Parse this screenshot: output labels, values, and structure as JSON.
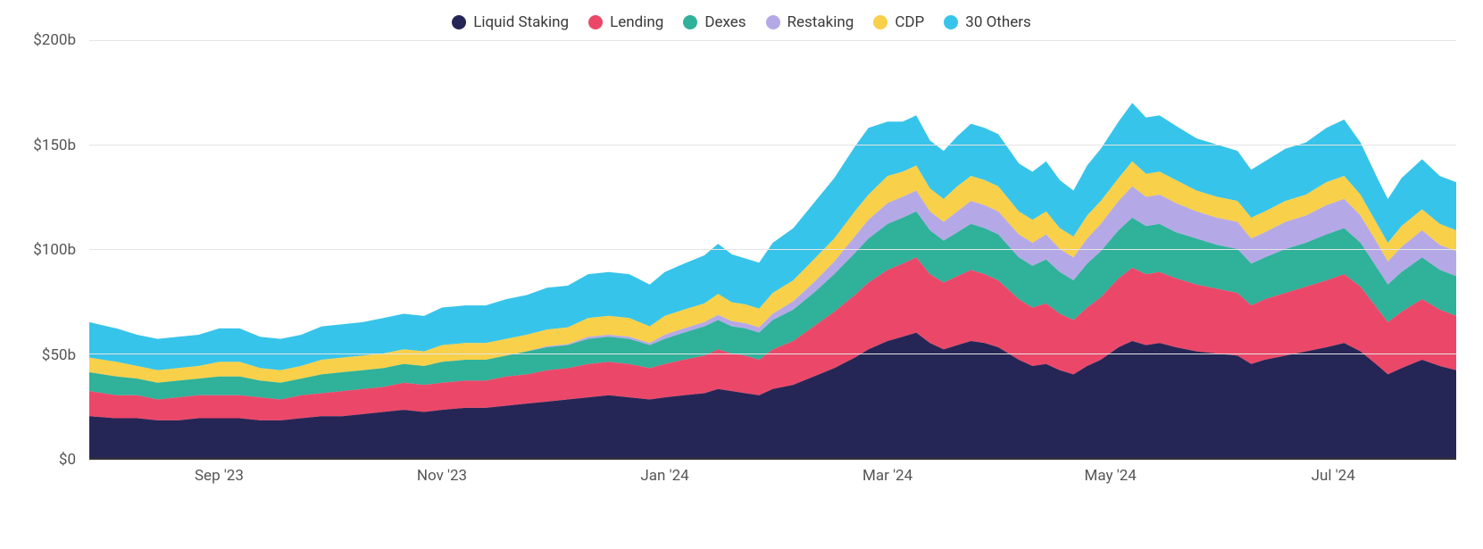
{
  "chart": {
    "type": "area-stacked",
    "background_color": "#ffffff",
    "grid_color": "#e5e5e5",
    "axis_text_color": "#555555",
    "legend_text_color": "#3a3a3a",
    "font_size_legend": 17,
    "font_size_axis": 17,
    "y": {
      "min": 0,
      "max": 200,
      "tick_step": 50,
      "ticks": [
        "$0",
        "$50b",
        "$100b",
        "$150b",
        "$200b"
      ],
      "label": ""
    },
    "x": {
      "ticks": [
        "Sep '23",
        "Nov '23",
        "Jan '24",
        "Mar '24",
        "May '24",
        "Jul '24"
      ],
      "tick_positions_pct": [
        9.5,
        25.8,
        42.1,
        58.4,
        74.7,
        91.0
      ]
    },
    "series_order": [
      "Liquid Staking",
      "Lending",
      "Dexes",
      "Restaking",
      "CDP",
      "30 Others"
    ],
    "colors": {
      "Liquid Staking": "#262656",
      "Lending": "#eb4869",
      "Dexes": "#2fb19a",
      "Restaking": "#b4a9e6",
      "CDP": "#f8d04a",
      "30 Others": "#37c4ea"
    },
    "data": [
      {
        "x": 0.0,
        "Liquid Staking": 20,
        "Lending": 12,
        "Dexes": 9,
        "Restaking": 0.0,
        "CDP": 7,
        "30 Others": 17
      },
      {
        "x": 0.02,
        "Liquid Staking": 19,
        "Lending": 11,
        "Dexes": 9,
        "Restaking": 0.0,
        "CDP": 7,
        "30 Others": 16
      },
      {
        "x": 0.035,
        "Liquid Staking": 19,
        "Lending": 11,
        "Dexes": 8,
        "Restaking": 0.0,
        "CDP": 6,
        "30 Others": 15
      },
      {
        "x": 0.05,
        "Liquid Staking": 18,
        "Lending": 10,
        "Dexes": 8,
        "Restaking": 0.0,
        "CDP": 6,
        "30 Others": 15
      },
      {
        "x": 0.065,
        "Liquid Staking": 18,
        "Lending": 11,
        "Dexes": 8,
        "Restaking": 0.0,
        "CDP": 6,
        "30 Others": 15
      },
      {
        "x": 0.08,
        "Liquid Staking": 19,
        "Lending": 11,
        "Dexes": 8,
        "Restaking": 0.0,
        "CDP": 6,
        "30 Others": 15
      },
      {
        "x": 0.095,
        "Liquid Staking": 19,
        "Lending": 11,
        "Dexes": 9,
        "Restaking": 0.0,
        "CDP": 7,
        "30 Others": 16
      },
      {
        "x": 0.11,
        "Liquid Staking": 19,
        "Lending": 11,
        "Dexes": 9,
        "Restaking": 0.0,
        "CDP": 7,
        "30 Others": 16
      },
      {
        "x": 0.125,
        "Liquid Staking": 18,
        "Lending": 11,
        "Dexes": 8,
        "Restaking": 0.0,
        "CDP": 6,
        "30 Others": 15
      },
      {
        "x": 0.14,
        "Liquid Staking": 18,
        "Lending": 10,
        "Dexes": 8,
        "Restaking": 0.0,
        "CDP": 6,
        "30 Others": 15
      },
      {
        "x": 0.155,
        "Liquid Staking": 19,
        "Lending": 11,
        "Dexes": 8,
        "Restaking": 0.0,
        "CDP": 6,
        "30 Others": 15
      },
      {
        "x": 0.17,
        "Liquid Staking": 20,
        "Lending": 11,
        "Dexes": 9,
        "Restaking": 0.0,
        "CDP": 7,
        "30 Others": 16
      },
      {
        "x": 0.185,
        "Liquid Staking": 20,
        "Lending": 12,
        "Dexes": 9,
        "Restaking": 0.0,
        "CDP": 7,
        "30 Others": 16
      },
      {
        "x": 0.2,
        "Liquid Staking": 21,
        "Lending": 12,
        "Dexes": 9,
        "Restaking": 0.0,
        "CDP": 7,
        "30 Others": 16
      },
      {
        "x": 0.215,
        "Liquid Staking": 22,
        "Lending": 12,
        "Dexes": 9,
        "Restaking": 0.0,
        "CDP": 7,
        "30 Others": 17
      },
      {
        "x": 0.23,
        "Liquid Staking": 23,
        "Lending": 13,
        "Dexes": 9,
        "Restaking": 0.0,
        "CDP": 7,
        "30 Others": 17
      },
      {
        "x": 0.245,
        "Liquid Staking": 22,
        "Lending": 13,
        "Dexes": 9,
        "Restaking": 0.0,
        "CDP": 7,
        "30 Others": 17
      },
      {
        "x": 0.258,
        "Liquid Staking": 23,
        "Lending": 13,
        "Dexes": 10,
        "Restaking": 0.0,
        "CDP": 8,
        "30 Others": 18
      },
      {
        "x": 0.275,
        "Liquid Staking": 24,
        "Lending": 13,
        "Dexes": 10,
        "Restaking": 0.0,
        "CDP": 8,
        "30 Others": 18
      },
      {
        "x": 0.29,
        "Liquid Staking": 24,
        "Lending": 13,
        "Dexes": 10,
        "Restaking": 0.0,
        "CDP": 8,
        "30 Others": 18
      },
      {
        "x": 0.305,
        "Liquid Staking": 25,
        "Lending": 14,
        "Dexes": 10,
        "Restaking": 0.0,
        "CDP": 8,
        "30 Others": 19
      },
      {
        "x": 0.32,
        "Liquid Staking": 26,
        "Lending": 14,
        "Dexes": 11,
        "Restaking": 0.0,
        "CDP": 8,
        "30 Others": 19
      },
      {
        "x": 0.335,
        "Liquid Staking": 27,
        "Lending": 15,
        "Dexes": 11,
        "Restaking": 0.5,
        "CDP": 8,
        "30 Others": 20
      },
      {
        "x": 0.35,
        "Liquid Staking": 28,
        "Lending": 15,
        "Dexes": 11,
        "Restaking": 0.5,
        "CDP": 8,
        "30 Others": 20
      },
      {
        "x": 0.365,
        "Liquid Staking": 29,
        "Lending": 16,
        "Dexes": 12,
        "Restaking": 1.0,
        "CDP": 9,
        "30 Others": 21
      },
      {
        "x": 0.38,
        "Liquid Staking": 30,
        "Lending": 16,
        "Dexes": 12,
        "Restaking": 1.0,
        "CDP": 9,
        "30 Others": 21
      },
      {
        "x": 0.395,
        "Liquid Staking": 29,
        "Lending": 16,
        "Dexes": 12,
        "Restaking": 1.0,
        "CDP": 9,
        "30 Others": 21
      },
      {
        "x": 0.41,
        "Liquid Staking": 28,
        "Lending": 15,
        "Dexes": 11,
        "Restaking": 1.0,
        "CDP": 8,
        "30 Others": 20
      },
      {
        "x": 0.421,
        "Liquid Staking": 29,
        "Lending": 16,
        "Dexes": 12,
        "Restaking": 2.0,
        "CDP": 9,
        "30 Others": 21
      },
      {
        "x": 0.435,
        "Liquid Staking": 30,
        "Lending": 17,
        "Dexes": 13,
        "Restaking": 2.0,
        "CDP": 9,
        "30 Others": 22
      },
      {
        "x": 0.45,
        "Liquid Staking": 31,
        "Lending": 18,
        "Dexes": 14,
        "Restaking": 2.0,
        "CDP": 9,
        "30 Others": 23
      },
      {
        "x": 0.46,
        "Liquid Staking": 33,
        "Lending": 19,
        "Dexes": 14,
        "Restaking": 2.5,
        "CDP": 10,
        "30 Others": 24
      },
      {
        "x": 0.47,
        "Liquid Staking": 32,
        "Lending": 18,
        "Dexes": 13,
        "Restaking": 2.5,
        "CDP": 9,
        "30 Others": 23
      },
      {
        "x": 0.48,
        "Liquid Staking": 31,
        "Lending": 18,
        "Dexes": 13,
        "Restaking": 2.5,
        "CDP": 9,
        "30 Others": 22
      },
      {
        "x": 0.49,
        "Liquid Staking": 30,
        "Lending": 17,
        "Dexes": 13,
        "Restaking": 2.5,
        "CDP": 9,
        "30 Others": 22
      },
      {
        "x": 0.5,
        "Liquid Staking": 33,
        "Lending": 19,
        "Dexes": 14,
        "Restaking": 3.0,
        "CDP": 10,
        "30 Others": 24
      },
      {
        "x": 0.515,
        "Liquid Staking": 35,
        "Lending": 21,
        "Dexes": 15,
        "Restaking": 4.0,
        "CDP": 10,
        "30 Others": 25
      },
      {
        "x": 0.53,
        "Liquid Staking": 39,
        "Lending": 24,
        "Dexes": 16,
        "Restaking": 5.0,
        "CDP": 11,
        "30 Others": 27
      },
      {
        "x": 0.545,
        "Liquid Staking": 43,
        "Lending": 27,
        "Dexes": 18,
        "Restaking": 6.0,
        "CDP": 11,
        "30 Others": 29
      },
      {
        "x": 0.56,
        "Liquid Staking": 48,
        "Lending": 30,
        "Dexes": 20,
        "Restaking": 8.0,
        "CDP": 12,
        "30 Others": 31
      },
      {
        "x": 0.57,
        "Liquid Staking": 52,
        "Lending": 32,
        "Dexes": 21,
        "Restaking": 9.0,
        "CDP": 12,
        "30 Others": 32
      },
      {
        "x": 0.584,
        "Liquid Staking": 56,
        "Lending": 34,
        "Dexes": 22,
        "Restaking": 10.0,
        "CDP": 13,
        "30 Others": 26
      },
      {
        "x": 0.595,
        "Liquid Staking": 58,
        "Lending": 35,
        "Dexes": 22,
        "Restaking": 10.0,
        "CDP": 12,
        "30 Others": 24
      },
      {
        "x": 0.605,
        "Liquid Staking": 60,
        "Lending": 36,
        "Dexes": 22,
        "Restaking": 10.0,
        "CDP": 12,
        "30 Others": 24
      },
      {
        "x": 0.615,
        "Liquid Staking": 55,
        "Lending": 33,
        "Dexes": 21,
        "Restaking": 9.0,
        "CDP": 11,
        "30 Others": 23
      },
      {
        "x": 0.625,
        "Liquid Staking": 52,
        "Lending": 32,
        "Dexes": 20,
        "Restaking": 9.0,
        "CDP": 11,
        "30 Others": 23
      },
      {
        "x": 0.635,
        "Liquid Staking": 54,
        "Lending": 33,
        "Dexes": 21,
        "Restaking": 10.0,
        "CDP": 12,
        "30 Others": 24
      },
      {
        "x": 0.645,
        "Liquid Staking": 56,
        "Lending": 34,
        "Dexes": 22,
        "Restaking": 11.0,
        "CDP": 12,
        "30 Others": 25
      },
      {
        "x": 0.655,
        "Liquid Staking": 55,
        "Lending": 33,
        "Dexes": 22,
        "Restaking": 11.0,
        "CDP": 12,
        "30 Others": 25
      },
      {
        "x": 0.665,
        "Liquid Staking": 53,
        "Lending": 32,
        "Dexes": 22,
        "Restaking": 11.0,
        "CDP": 12,
        "30 Others": 25
      },
      {
        "x": 0.68,
        "Liquid Staking": 47,
        "Lending": 29,
        "Dexes": 20,
        "Restaking": 11.0,
        "CDP": 11,
        "30 Others": 23
      },
      {
        "x": 0.69,
        "Liquid Staking": 44,
        "Lending": 28,
        "Dexes": 20,
        "Restaking": 11.0,
        "CDP": 11,
        "30 Others": 23
      },
      {
        "x": 0.7,
        "Liquid Staking": 45,
        "Lending": 29,
        "Dexes": 21,
        "Restaking": 12.0,
        "CDP": 11,
        "30 Others": 24
      },
      {
        "x": 0.71,
        "Liquid Staking": 42,
        "Lending": 27,
        "Dexes": 20,
        "Restaking": 11.0,
        "CDP": 10,
        "30 Others": 23
      },
      {
        "x": 0.72,
        "Liquid Staking": 40,
        "Lending": 26,
        "Dexes": 19,
        "Restaking": 11.0,
        "CDP": 10,
        "30 Others": 22
      },
      {
        "x": 0.73,
        "Liquid Staking": 44,
        "Lending": 28,
        "Dexes": 21,
        "Restaking": 12.0,
        "CDP": 11,
        "30 Others": 24
      },
      {
        "x": 0.74,
        "Liquid Staking": 47,
        "Lending": 30,
        "Dexes": 22,
        "Restaking": 13.0,
        "CDP": 11,
        "30 Others": 25
      },
      {
        "x": 0.753,
        "Liquid Staking": 53,
        "Lending": 33,
        "Dexes": 23,
        "Restaking": 14.0,
        "CDP": 11,
        "30 Others": 27
      },
      {
        "x": 0.763,
        "Liquid Staking": 56,
        "Lending": 35,
        "Dexes": 24,
        "Restaking": 15.0,
        "CDP": 12,
        "30 Others": 28
      },
      {
        "x": 0.773,
        "Liquid Staking": 54,
        "Lending": 34,
        "Dexes": 23,
        "Restaking": 14.0,
        "CDP": 11,
        "30 Others": 27
      },
      {
        "x": 0.783,
        "Liquid Staking": 55,
        "Lending": 34,
        "Dexes": 23,
        "Restaking": 14.0,
        "CDP": 11,
        "30 Others": 27
      },
      {
        "x": 0.795,
        "Liquid Staking": 53,
        "Lending": 33,
        "Dexes": 22,
        "Restaking": 14.0,
        "CDP": 11,
        "30 Others": 26
      },
      {
        "x": 0.81,
        "Liquid Staking": 51,
        "Lending": 32,
        "Dexes": 22,
        "Restaking": 13.0,
        "CDP": 10,
        "30 Others": 25
      },
      {
        "x": 0.825,
        "Liquid Staking": 50,
        "Lending": 31,
        "Dexes": 21,
        "Restaking": 13.0,
        "CDP": 10,
        "30 Others": 25
      },
      {
        "x": 0.84,
        "Liquid Staking": 49,
        "Lending": 30,
        "Dexes": 21,
        "Restaking": 13.0,
        "CDP": 10,
        "30 Others": 24
      },
      {
        "x": 0.85,
        "Liquid Staking": 45,
        "Lending": 28,
        "Dexes": 20,
        "Restaking": 12.0,
        "CDP": 10,
        "30 Others": 23
      },
      {
        "x": 0.86,
        "Liquid Staking": 47,
        "Lending": 29,
        "Dexes": 20,
        "Restaking": 12.0,
        "CDP": 10,
        "30 Others": 24
      },
      {
        "x": 0.875,
        "Liquid Staking": 49,
        "Lending": 30,
        "Dexes": 21,
        "Restaking": 13.0,
        "CDP": 10,
        "30 Others": 25
      },
      {
        "x": 0.89,
        "Liquid Staking": 51,
        "Lending": 31,
        "Dexes": 21,
        "Restaking": 13.0,
        "CDP": 10,
        "30 Others": 25
      },
      {
        "x": 0.905,
        "Liquid Staking": 53,
        "Lending": 32,
        "Dexes": 22,
        "Restaking": 14.0,
        "CDP": 11,
        "30 Others": 26
      },
      {
        "x": 0.918,
        "Liquid Staking": 55,
        "Lending": 33,
        "Dexes": 22,
        "Restaking": 14.0,
        "CDP": 11,
        "30 Others": 27
      },
      {
        "x": 0.93,
        "Liquid Staking": 51,
        "Lending": 31,
        "Dexes": 21,
        "Restaking": 13.0,
        "CDP": 10,
        "30 Others": 25
      },
      {
        "x": 0.943,
        "Liquid Staking": 44,
        "Lending": 27,
        "Dexes": 19,
        "Restaking": 12.0,
        "CDP": 9,
        "30 Others": 22
      },
      {
        "x": 0.95,
        "Liquid Staking": 40,
        "Lending": 25,
        "Dexes": 18,
        "Restaking": 11.0,
        "CDP": 9,
        "30 Others": 21
      },
      {
        "x": 0.96,
        "Liquid Staking": 43,
        "Lending": 27,
        "Dexes": 19,
        "Restaking": 12.0,
        "CDP": 10,
        "30 Others": 23
      },
      {
        "x": 0.975,
        "Liquid Staking": 47,
        "Lending": 29,
        "Dexes": 20,
        "Restaking": 13.0,
        "CDP": 10,
        "30 Others": 24
      },
      {
        "x": 0.988,
        "Liquid Staking": 44,
        "Lending": 27,
        "Dexes": 19,
        "Restaking": 12.0,
        "CDP": 10,
        "30 Others": 23
      },
      {
        "x": 1.0,
        "Liquid Staking": 42,
        "Lending": 26,
        "Dexes": 19,
        "Restaking": 12.0,
        "CDP": 10,
        "30 Others": 23
      }
    ]
  },
  "legend": [
    {
      "label": "Liquid Staking",
      "color": "#262656"
    },
    {
      "label": "Lending",
      "color": "#eb4869"
    },
    {
      "label": "Dexes",
      "color": "#2fb19a"
    },
    {
      "label": "Restaking",
      "color": "#b4a9e6"
    },
    {
      "label": "CDP",
      "color": "#f8d04a"
    },
    {
      "label": "30 Others",
      "color": "#37c4ea"
    }
  ]
}
